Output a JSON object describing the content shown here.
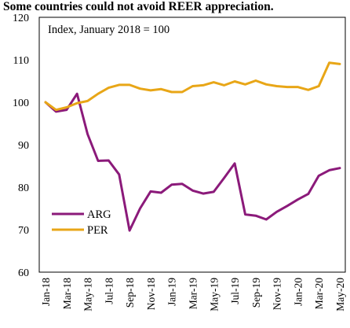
{
  "chart_data": {
    "type": "line",
    "title": "Some countries could not avoid REER appreciation.",
    "annotation": "Index, January 2018 = 100",
    "xlabel": "",
    "ylabel": "",
    "ylim": [
      60,
      120
    ],
    "yticks": [
      60,
      70,
      80,
      90,
      100,
      110,
      120
    ],
    "x": [
      "Jan-18",
      "Feb-18",
      "Mar-18",
      "Apr-18",
      "May-18",
      "Jun-18",
      "Jul-18",
      "Aug-18",
      "Sep-18",
      "Oct-18",
      "Nov-18",
      "Dec-18",
      "Jan-19",
      "Feb-19",
      "Mar-19",
      "Apr-19",
      "May-19",
      "Jun-19",
      "Jul-19",
      "Aug-19",
      "Sep-19",
      "Oct-19",
      "Nov-19",
      "Dec-19",
      "Jan-20",
      "Feb-20",
      "Mar-20",
      "Apr-20",
      "May-20"
    ],
    "x_tick_labels": [
      "Jan-18",
      "Mar-18",
      "May-18",
      "Jul-18",
      "Sep-18",
      "Nov-18",
      "Jan-19",
      "Mar-19",
      "May-19",
      "Jul-19",
      "Sep-19",
      "Nov-19",
      "Jan-20",
      "Mar-20",
      "May-20"
    ],
    "series": [
      {
        "name": "ARG",
        "color": "#8b1a7a",
        "values": [
          100.0,
          97.8,
          98.2,
          102.0,
          92.5,
          86.2,
          86.3,
          83.0,
          69.8,
          75.0,
          79.0,
          78.7,
          80.6,
          80.8,
          79.2,
          78.5,
          78.9,
          82.2,
          85.6,
          73.6,
          73.3,
          72.4,
          74.2,
          75.6,
          77.1,
          78.4,
          82.7,
          84.0,
          84.5
        ]
      },
      {
        "name": "PER",
        "color": "#e8a617",
        "values": [
          100.0,
          98.2,
          98.8,
          99.8,
          100.3,
          102.0,
          103.4,
          104.1,
          104.1,
          103.2,
          102.8,
          103.1,
          102.4,
          102.4,
          103.8,
          104.0,
          104.7,
          104.0,
          104.9,
          104.2,
          105.1,
          104.2,
          103.8,
          103.6,
          103.6,
          102.9,
          103.8,
          109.3,
          109.0
        ]
      }
    ],
    "legend": "lower-left",
    "grid": false
  }
}
